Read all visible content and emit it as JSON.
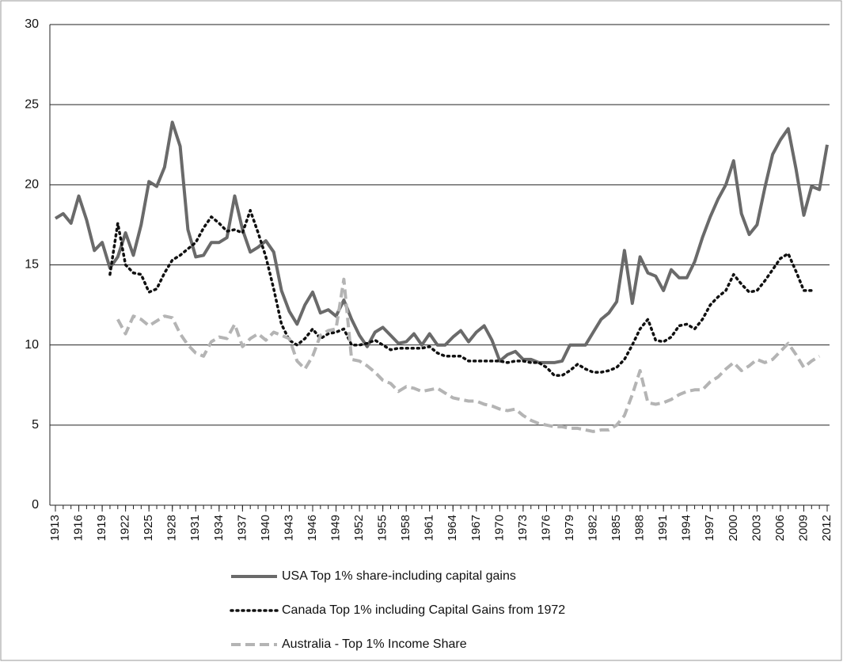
{
  "chart_data": {
    "type": "line",
    "x": [
      1913,
      1914,
      1915,
      1916,
      1917,
      1918,
      1919,
      1920,
      1921,
      1922,
      1923,
      1924,
      1925,
      1926,
      1927,
      1928,
      1929,
      1930,
      1931,
      1932,
      1933,
      1934,
      1935,
      1936,
      1937,
      1938,
      1939,
      1940,
      1941,
      1942,
      1943,
      1944,
      1945,
      1946,
      1947,
      1948,
      1949,
      1950,
      1951,
      1952,
      1953,
      1954,
      1955,
      1956,
      1957,
      1958,
      1959,
      1960,
      1961,
      1962,
      1963,
      1964,
      1965,
      1966,
      1967,
      1968,
      1969,
      1970,
      1971,
      1972,
      1973,
      1974,
      1975,
      1976,
      1977,
      1978,
      1979,
      1980,
      1981,
      1982,
      1983,
      1984,
      1985,
      1986,
      1987,
      1988,
      1989,
      1990,
      1991,
      1992,
      1993,
      1994,
      1995,
      1996,
      1997,
      1998,
      1999,
      2000,
      2001,
      2002,
      2003,
      2004,
      2005,
      2006,
      2007,
      2008,
      2009,
      2010,
      2011,
      2012
    ],
    "series": [
      {
        "name": "USA Top 1% share-including capital gains",
        "color": "#6a6a6a",
        "style": "solid",
        "width": 4,
        "values": [
          17.9,
          18.2,
          17.6,
          19.3,
          17.8,
          15.9,
          16.4,
          14.8,
          15.5,
          17.0,
          15.6,
          17.5,
          20.2,
          19.9,
          21.1,
          23.9,
          22.4,
          17.2,
          15.5,
          15.6,
          16.4,
          16.4,
          16.7,
          19.3,
          17.2,
          15.8,
          16.1,
          16.5,
          15.8,
          13.4,
          12.1,
          11.3,
          12.5,
          13.3,
          12.0,
          12.2,
          11.8,
          12.8,
          11.6,
          10.6,
          9.9,
          10.8,
          11.1,
          10.6,
          10.1,
          10.2,
          10.7,
          10.0,
          10.7,
          10.0,
          10.0,
          10.5,
          10.9,
          10.2,
          10.8,
          11.2,
          10.3,
          9.0,
          9.4,
          9.6,
          9.1,
          9.1,
          8.9,
          8.9,
          8.9,
          9.0,
          10.0,
          10.0,
          10.0,
          10.8,
          11.6,
          12.0,
          12.7,
          15.9,
          12.6,
          15.5,
          14.5,
          14.3,
          13.4,
          14.7,
          14.2,
          14.2,
          15.2,
          16.7,
          18.0,
          19.1,
          20.0,
          21.5,
          18.2,
          16.9,
          17.5,
          19.8,
          21.9,
          22.8,
          23.5,
          21.0,
          18.1,
          19.9,
          19.7,
          22.5
        ]
      },
      {
        "name": "Canada Top 1% including Capital Gains from 1972",
        "color": "#111111",
        "style": "dotted",
        "width": 3.5,
        "values": [
          null,
          null,
          null,
          null,
          null,
          null,
          null,
          14.4,
          17.6,
          15.0,
          14.5,
          14.4,
          13.3,
          13.5,
          14.5,
          15.3,
          15.6,
          16.0,
          16.4,
          17.3,
          18.0,
          17.6,
          17.1,
          17.2,
          17.0,
          18.4,
          17.0,
          15.5,
          13.5,
          11.3,
          10.3,
          10.0,
          10.4,
          11.0,
          10.4,
          10.7,
          10.8,
          11.0,
          10.0,
          10.0,
          10.1,
          10.3,
          10.0,
          9.7,
          9.8,
          9.8,
          9.8,
          9.8,
          9.9,
          9.5,
          9.3,
          9.3,
          9.3,
          9.0,
          9.0,
          9.0,
          9.0,
          9.0,
          8.9,
          9.0,
          9.0,
          8.9,
          8.9,
          8.6,
          8.1,
          8.1,
          8.4,
          8.8,
          8.5,
          8.3,
          8.3,
          8.4,
          8.6,
          9.1,
          10.0,
          11.0,
          11.6,
          10.3,
          10.2,
          10.5,
          11.2,
          11.3,
          11.0,
          11.6,
          12.5,
          13.0,
          13.4,
          14.4,
          13.8,
          13.3,
          13.4,
          14.0,
          14.7,
          15.4,
          15.7,
          14.6,
          13.4,
          13.4,
          null,
          null
        ]
      },
      {
        "name": "Australia - Top 1% Income Share",
        "color": "#b4b4b4",
        "style": "dashed",
        "width": 4,
        "values": [
          null,
          null,
          null,
          null,
          null,
          null,
          null,
          null,
          11.6,
          10.7,
          11.8,
          11.6,
          11.2,
          11.5,
          11.8,
          11.7,
          10.7,
          10.0,
          9.5,
          9.3,
          10.2,
          10.5,
          10.4,
          11.3,
          9.9,
          10.4,
          10.7,
          10.3,
          10.8,
          10.6,
          10.4,
          9.0,
          8.5,
          9.3,
          10.6,
          10.9,
          11.0,
          14.1,
          9.1,
          9.0,
          8.7,
          8.3,
          7.8,
          7.6,
          7.1,
          7.4,
          7.3,
          7.1,
          7.2,
          7.3,
          7.0,
          6.7,
          6.6,
          6.5,
          6.5,
          6.3,
          6.2,
          6.0,
          5.9,
          6.0,
          5.6,
          5.3,
          5.1,
          5.0,
          4.9,
          4.9,
          4.8,
          4.8,
          4.7,
          4.6,
          4.7,
          4.7,
          5.0,
          5.6,
          6.9,
          8.4,
          6.4,
          6.3,
          6.4,
          6.6,
          6.9,
          7.1,
          7.2,
          7.2,
          7.7,
          8.0,
          8.5,
          8.9,
          8.4,
          8.7,
          9.1,
          8.9,
          9.1,
          9.6,
          10.1,
          9.4,
          8.6,
          9.0,
          9.3,
          null
        ]
      }
    ],
    "xlim": [
      1913,
      2012
    ],
    "xticks": [
      1913,
      1916,
      1919,
      1922,
      1925,
      1928,
      1931,
      1934,
      1937,
      1940,
      1943,
      1946,
      1949,
      1952,
      1955,
      1958,
      1961,
      1964,
      1967,
      1970,
      1973,
      1976,
      1979,
      1982,
      1985,
      1988,
      1991,
      1994,
      1997,
      2000,
      2003,
      2006,
      2009,
      2012
    ],
    "ylim": [
      0,
      30
    ],
    "yticks": [
      0,
      5,
      10,
      15,
      20,
      25,
      30
    ],
    "grid": true,
    "legend": "bottom"
  }
}
